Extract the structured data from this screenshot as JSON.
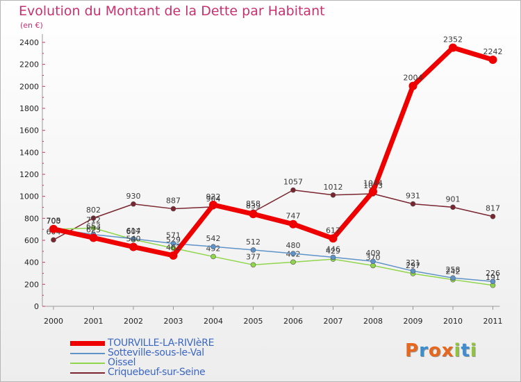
{
  "chart_data": {
    "type": "line",
    "title": "Evolution du Montant de la Dette par Habitant",
    "unit_label": "(en €)",
    "x": [
      "2000",
      "2001",
      "2002",
      "2003",
      "2004",
      "2005",
      "2006",
      "2007",
      "2008",
      "2009",
      "2010",
      "2011"
    ],
    "ylim": [
      0,
      2400
    ],
    "yticks": [
      0,
      200,
      400,
      600,
      800,
      1000,
      1200,
      1400,
      1600,
      1800,
      2000,
      2200,
      2400
    ],
    "grid": false,
    "legend_position": "bottom-left",
    "series": [
      {
        "name": "Criquebeuf-sur-Seine",
        "color": "#7a2530",
        "values": [
          604,
          802,
          930,
          887,
          904,
          858,
          1057,
          1012,
          1023,
          931,
          901,
          817
        ]
      },
      {
        "name": "Oissel",
        "color": "#8fd64a",
        "values": [
          700,
          712,
          607,
          529,
          452,
          377,
          402,
          429,
          370,
          297,
          242,
          191
        ]
      },
      {
        "name": "Sotteville-sous-le-Val",
        "color": "#5e93c8",
        "values": [
          705,
          653,
          614,
          571,
          542,
          512,
          480,
          446,
          409,
          321,
          258,
          226
        ]
      },
      {
        "name": "TOURVILLE-LA-RIVIèRE",
        "color": "#ee0000",
        "values": [
          703,
          623,
          540,
          462,
          922,
          839,
          747,
          617,
          1044,
          2004,
          2352,
          2242
        ]
      }
    ]
  },
  "logo": {
    "letters": [
      "P",
      "r",
      "o",
      "x",
      "i",
      "t",
      "i"
    ],
    "colors": [
      "#e8671c",
      "#3c8ed0",
      "#e8671c",
      "#e8671c",
      "#8fc43b",
      "#3c8ed0",
      "#8fc43b"
    ]
  }
}
